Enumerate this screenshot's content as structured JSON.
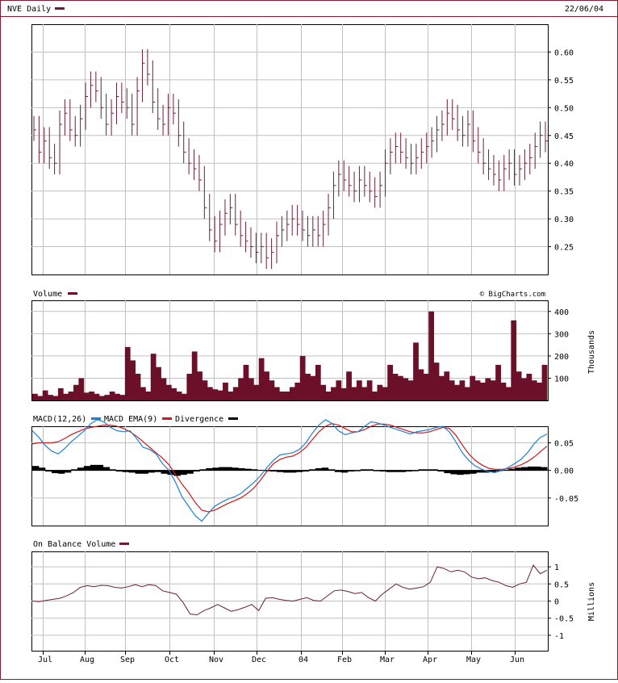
{
  "header": {
    "title": "NVE Daily",
    "date": "22/06/04",
    "credit": "© BigCharts.com"
  },
  "colors": {
    "frame": "#8b1a2e",
    "price": "#6b1f3a",
    "volume": "#6b1028",
    "macd": "#1e7fd8",
    "ema": "#cc1a1a",
    "divergence": "#000000",
    "obv": "#6b1f3a",
    "grid": "#c0c0c0"
  },
  "chart_data": [
    {
      "type": "line",
      "panel": "price",
      "title": "NVE Daily",
      "x_tick_labels": [
        "Jul",
        "Aug",
        "Sep",
        "Oct",
        "Nov",
        "Dec",
        "04",
        "Feb",
        "Mar",
        "Apr",
        "May",
        "Jun"
      ],
      "y_tick_labels": [
        "0.60",
        "0.55",
        "0.50",
        "0.45",
        "0.40",
        "0.35",
        "0.30",
        "0.25"
      ],
      "yticks": [
        0.6,
        0.55,
        0.5,
        0.45,
        0.4,
        0.35,
        0.3,
        0.25
      ],
      "ylim": [
        0.2,
        0.65
      ],
      "series": [
        {
          "values": [
            0.46,
            0.42,
            0.44,
            0.41,
            0.4,
            0.47,
            0.49,
            0.46,
            0.45,
            0.48,
            0.52,
            0.54,
            0.53,
            0.5,
            0.47,
            0.49,
            0.52,
            0.51,
            0.5,
            0.47,
            0.53,
            0.58,
            0.56,
            0.51,
            0.48,
            0.47,
            0.5,
            0.49,
            0.45,
            0.42,
            0.4,
            0.39,
            0.37,
            0.32,
            0.28,
            0.26,
            0.29,
            0.31,
            0.32,
            0.29,
            0.27,
            0.26,
            0.25,
            0.24,
            0.25,
            0.23,
            0.24,
            0.27,
            0.28,
            0.29,
            0.3,
            0.29,
            0.28,
            0.27,
            0.28,
            0.27,
            0.29,
            0.32,
            0.36,
            0.38,
            0.37,
            0.36,
            0.35,
            0.37,
            0.36,
            0.35,
            0.34,
            0.36,
            0.4,
            0.42,
            0.43,
            0.42,
            0.41,
            0.4,
            0.41,
            0.42,
            0.43,
            0.44,
            0.46,
            0.47,
            0.49,
            0.48,
            0.46,
            0.45,
            0.47,
            0.44,
            0.42,
            0.4,
            0.39,
            0.38,
            0.37,
            0.39,
            0.4,
            0.38,
            0.39,
            0.4,
            0.41,
            0.43,
            0.45,
            0.44
          ]
        }
      ]
    },
    {
      "type": "bar",
      "panel": "volume",
      "title": "Volume",
      "ylabel": "Thousands",
      "y_tick_labels": [
        "400",
        "300",
        "200",
        "100"
      ],
      "yticks": [
        400,
        300,
        200,
        100
      ],
      "ylim": [
        0,
        450
      ],
      "values": [
        30,
        20,
        45,
        25,
        20,
        55,
        30,
        40,
        70,
        100,
        35,
        40,
        30,
        20,
        25,
        40,
        30,
        25,
        240,
        180,
        120,
        60,
        40,
        210,
        150,
        100,
        70,
        55,
        40,
        30,
        120,
        220,
        130,
        90,
        60,
        50,
        45,
        80,
        40,
        60,
        100,
        160,
        100,
        70,
        190,
        130,
        90,
        60,
        40,
        40,
        60,
        80,
        200,
        120,
        110,
        160,
        70,
        40,
        60,
        90,
        55,
        130,
        60,
        90,
        60,
        90,
        40,
        70,
        60,
        160,
        120,
        110,
        100,
        90,
        260,
        140,
        120,
        400,
        170,
        110,
        130,
        90,
        70,
        90,
        60,
        110,
        90,
        80,
        100,
        90,
        160,
        80,
        60,
        360,
        130,
        100,
        120,
        90,
        80,
        160
      ]
    },
    {
      "type": "line",
      "panel": "macd",
      "title": "MACD(12,26)",
      "legend": [
        "MACD EMA(9)",
        "Divergence"
      ],
      "y_tick_labels": [
        "0.05",
        "0.00",
        "-0.05"
      ],
      "yticks": [
        0.05,
        0.0,
        -0.05
      ],
      "ylim": [
        -0.1,
        0.08
      ],
      "series": [
        {
          "name": "MACD(12,26)",
          "values": [
            0.072,
            0.06,
            0.045,
            0.035,
            0.03,
            0.04,
            0.052,
            0.062,
            0.072,
            0.085,
            0.092,
            0.088,
            0.078,
            0.072,
            0.07,
            0.072,
            0.058,
            0.042,
            0.038,
            0.03,
            0.012,
            0.0,
            -0.022,
            -0.048,
            -0.065,
            -0.082,
            -0.092,
            -0.078,
            -0.065,
            -0.058,
            -0.052,
            -0.048,
            -0.042,
            -0.032,
            -0.022,
            -0.01,
            0.005,
            0.018,
            0.028,
            0.03,
            0.032,
            0.038,
            0.05,
            0.068,
            0.082,
            0.092,
            0.085,
            0.072,
            0.065,
            0.068,
            0.07,
            0.08,
            0.088,
            0.086,
            0.082,
            0.078,
            0.074,
            0.07,
            0.066,
            0.07,
            0.072,
            0.074,
            0.078,
            0.08,
            0.07,
            0.052,
            0.032,
            0.018,
            0.008,
            0.002,
            -0.002,
            -0.004,
            0.0,
            0.005,
            0.012,
            0.02,
            0.032,
            0.048,
            0.06,
            0.066
          ]
        },
        {
          "name": "MACD EMA(9)",
          "values": [
            0.048,
            0.05,
            0.05,
            0.05,
            0.052,
            0.058,
            0.065,
            0.07,
            0.075,
            0.078,
            0.08,
            0.082,
            0.082,
            0.08,
            0.076,
            0.07,
            0.062,
            0.052,
            0.042,
            0.032,
            0.022,
            0.01,
            -0.008,
            -0.025,
            -0.04,
            -0.058,
            -0.072,
            -0.075,
            -0.072,
            -0.066,
            -0.06,
            -0.055,
            -0.05,
            -0.042,
            -0.032,
            -0.018,
            -0.002,
            0.012,
            0.02,
            0.024,
            0.026,
            0.032,
            0.042,
            0.056,
            0.07,
            0.08,
            0.085,
            0.082,
            0.076,
            0.07,
            0.07,
            0.074,
            0.08,
            0.084,
            0.084,
            0.082,
            0.078,
            0.074,
            0.07,
            0.068,
            0.068,
            0.07,
            0.074,
            0.078,
            0.076,
            0.064,
            0.046,
            0.03,
            0.018,
            0.01,
            0.004,
            0.002,
            0.002,
            0.003,
            0.006,
            0.01,
            0.016,
            0.024,
            0.034,
            0.044
          ]
        },
        {
          "name": "Divergence",
          "values": [
            0.008,
            0.005,
            -0.002,
            -0.005,
            -0.006,
            -0.004,
            0.002,
            0.005,
            0.008,
            0.01,
            0.01,
            0.006,
            0.002,
            -0.002,
            -0.003,
            -0.004,
            -0.006,
            -0.006,
            -0.004,
            -0.003,
            -0.006,
            -0.008,
            -0.01,
            -0.008,
            -0.006,
            -0.002,
            0.002,
            0.004,
            0.005,
            0.006,
            0.006,
            0.005,
            0.004,
            0.003,
            0.002,
            0.001,
            0.0,
            -0.002,
            -0.003,
            -0.004,
            -0.004,
            -0.003,
            -0.002,
            0.002,
            0.004,
            0.005,
            0.002,
            -0.003,
            -0.004,
            -0.002,
            0.0,
            0.002,
            0.002,
            0.0,
            -0.002,
            -0.003,
            -0.003,
            -0.003,
            -0.002,
            0.0,
            0.002,
            0.002,
            0.002,
            -0.002,
            -0.005,
            -0.007,
            -0.008,
            -0.007,
            -0.006,
            -0.004,
            -0.004,
            -0.003,
            -0.001,
            0.001,
            0.003,
            0.005,
            0.006,
            0.007,
            0.007,
            0.006
          ]
        }
      ]
    },
    {
      "type": "line",
      "panel": "obv",
      "title": "On Balance Volume",
      "ylabel": "Millions",
      "y_tick_labels": [
        "1",
        "0.5",
        "0",
        "-0.5",
        "-1"
      ],
      "yticks": [
        1,
        0.5,
        0,
        -0.5,
        -1
      ],
      "ylim": [
        -1.45,
        1.45
      ],
      "series": [
        {
          "values": [
            0.0,
            -0.02,
            0.02,
            0.05,
            0.08,
            0.15,
            0.25,
            0.4,
            0.45,
            0.42,
            0.46,
            0.45,
            0.4,
            0.38,
            0.42,
            0.48,
            0.42,
            0.48,
            0.45,
            0.3,
            0.25,
            0.2,
            -0.05,
            -0.38,
            -0.4,
            -0.28,
            -0.2,
            -0.1,
            -0.2,
            -0.3,
            -0.25,
            -0.18,
            -0.1,
            -0.28,
            0.08,
            0.1,
            0.05,
            0.02,
            0.0,
            0.05,
            0.1,
            0.02,
            0.0,
            0.15,
            0.3,
            0.32,
            0.28,
            0.22,
            0.25,
            0.1,
            0.0,
            0.2,
            0.35,
            0.5,
            0.4,
            0.35,
            0.38,
            0.42,
            0.55,
            1.0,
            0.95,
            0.85,
            0.9,
            0.85,
            0.7,
            0.65,
            0.68,
            0.6,
            0.55,
            0.45,
            0.4,
            0.5,
            0.55,
            1.05,
            0.8,
            0.9
          ]
        }
      ]
    }
  ]
}
